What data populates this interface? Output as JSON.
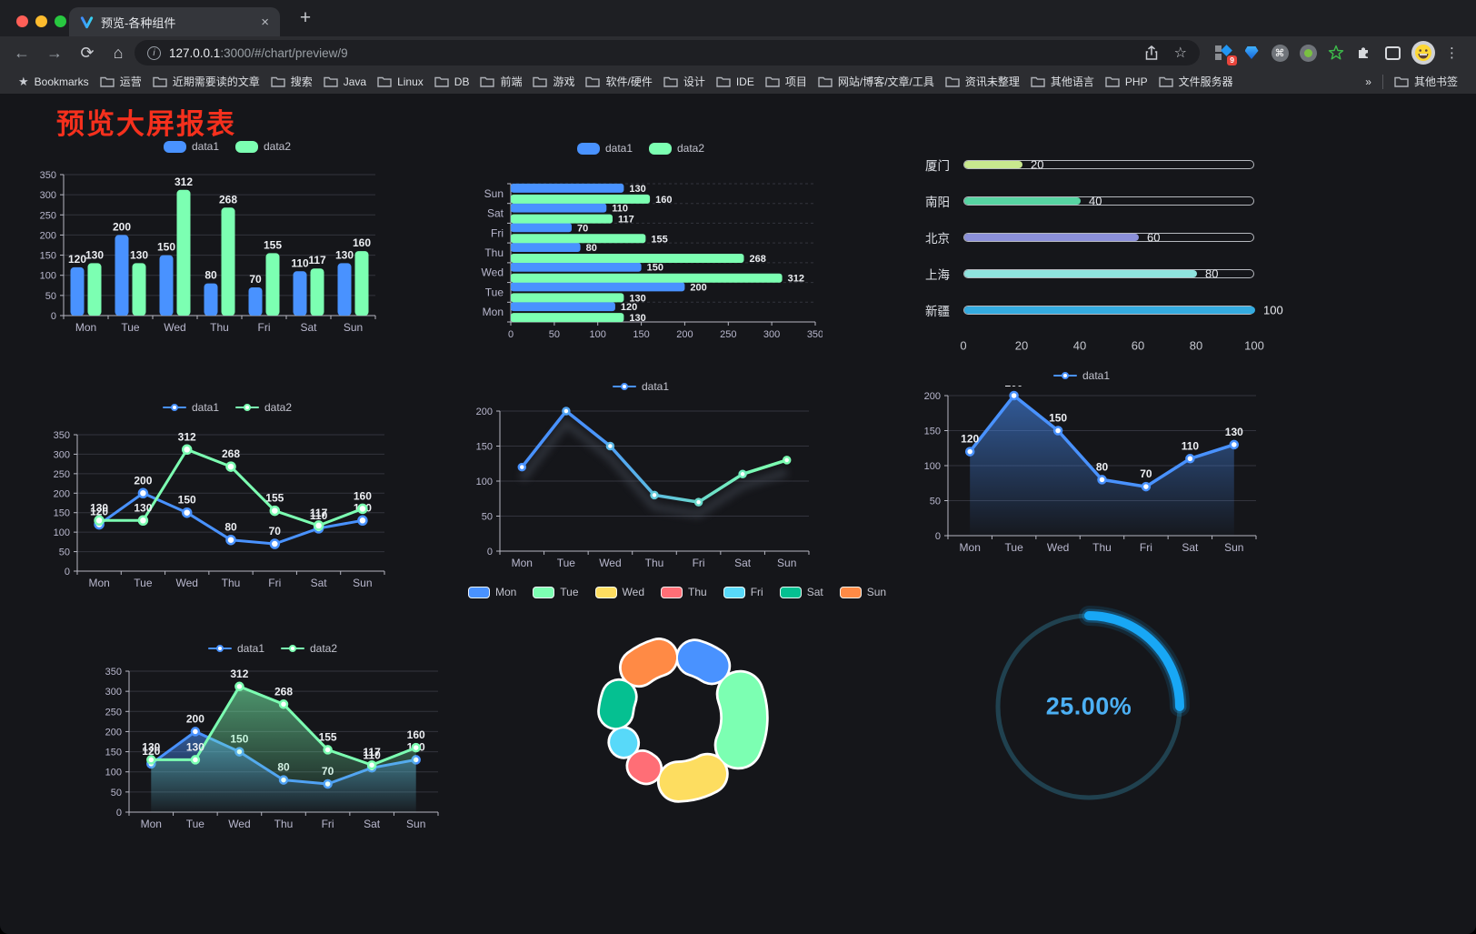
{
  "browser": {
    "traffic_lights": [
      "#ff5f57",
      "#febc2e",
      "#28c840"
    ],
    "tab": {
      "title": "预览-各种组件"
    },
    "icons": {
      "back": "←",
      "forward": "→",
      "reload": "⟳",
      "home": "⌂",
      "info": "i",
      "star": "☆",
      "menu": "⋮",
      "bookmark_star": "★",
      "close": "×",
      "new_tab": "+",
      "overflow": "»",
      "command": "⌘"
    },
    "url": {
      "host": "127.0.0.1",
      "rest": ":3000/#/chart/preview/9"
    },
    "extensions": {
      "badge": "9"
    },
    "bookmarks_bar": {
      "label": "Bookmarks",
      "folders": [
        "运营",
        "近期需要读的文章",
        "搜索",
        "Java",
        "Linux",
        "DB",
        "前端",
        "游戏",
        "软件/硬件",
        "设计",
        "IDE",
        "项目",
        "网站/博客/文章/工具",
        "资讯未整理",
        "其他语言",
        "PHP",
        "文件服务器"
      ],
      "other": "其他书签"
    }
  },
  "page": {
    "title": "预览大屏报表",
    "title_color": "#f5301d"
  },
  "chart_data": [
    {
      "name": "grouped-bar",
      "type": "bar",
      "categories": [
        "Mon",
        "Tue",
        "Wed",
        "Thu",
        "Fri",
        "Sat",
        "Sun"
      ],
      "series": [
        {
          "name": "data1",
          "color": "#4992ff",
          "values": [
            120,
            200,
            150,
            80,
            70,
            110,
            130
          ]
        },
        {
          "name": "data2",
          "color": "#7cffb2",
          "values": [
            130,
            130,
            312,
            268,
            155,
            117,
            160
          ]
        }
      ],
      "ylim": [
        0,
        350
      ],
      "ystep": 50,
      "legend_position": "top",
      "grid": true
    },
    {
      "name": "horizontal-bar",
      "type": "bar",
      "orientation": "horizontal",
      "categories": [
        "Mon",
        "Tue",
        "Wed",
        "Thu",
        "Fri",
        "Sat",
        "Sun"
      ],
      "category_display_order_top_to_bottom": [
        "Sun",
        "Sat",
        "Fri",
        "Thu",
        "Wed",
        "Tue",
        "Mon"
      ],
      "series": [
        {
          "name": "data1",
          "color": "#4992ff",
          "values": [
            120,
            200,
            150,
            80,
            70,
            110,
            130
          ]
        },
        {
          "name": "data2",
          "color": "#7cffb2",
          "values": [
            130,
            130,
            312,
            268,
            155,
            117,
            160
          ]
        }
      ],
      "xlim": [
        0,
        350
      ],
      "xstep": 50,
      "legend_position": "top",
      "grid": true
    },
    {
      "name": "progress-bars",
      "type": "bar",
      "orientation": "horizontal",
      "items": [
        {
          "label": "厦门",
          "value": 20,
          "color": "#c8e88e"
        },
        {
          "label": "南阳",
          "value": 40,
          "color": "#57d4a2"
        },
        {
          "label": "北京",
          "value": 60,
          "color": "#8b90d9"
        },
        {
          "label": "上海",
          "value": 80,
          "color": "#8fe3de"
        },
        {
          "label": "新疆",
          "value": 100,
          "color": "#34abe0"
        }
      ],
      "xlim": [
        0,
        100
      ],
      "xticks": [
        0,
        20,
        40,
        60,
        80,
        100
      ]
    },
    {
      "name": "two-series-line",
      "type": "line",
      "categories": [
        "Mon",
        "Tue",
        "Wed",
        "Thu",
        "Fri",
        "Sat",
        "Sun"
      ],
      "series": [
        {
          "name": "data1",
          "color": "#4992ff",
          "values": [
            120,
            200,
            150,
            80,
            70,
            110,
            130
          ]
        },
        {
          "name": "data2",
          "color": "#7cffb2",
          "values": [
            130,
            130,
            312,
            268,
            155,
            117,
            160
          ]
        }
      ],
      "ylim": [
        0,
        350
      ],
      "ystep": 50,
      "legend_position": "top",
      "labels": true
    },
    {
      "name": "gradient-line",
      "type": "line",
      "categories": [
        "Mon",
        "Tue",
        "Wed",
        "Thu",
        "Fri",
        "Sat",
        "Sun"
      ],
      "series": [
        {
          "name": "data1",
          "color_gradient": [
            "#4992ff",
            "#7cffb2"
          ],
          "values": [
            120,
            200,
            150,
            80,
            70,
            110,
            130
          ]
        }
      ],
      "ylim": [
        0,
        200
      ],
      "ystep": 50,
      "legend_position": "top",
      "labels": false
    },
    {
      "name": "area-line",
      "type": "area",
      "categories": [
        "Mon",
        "Tue",
        "Wed",
        "Thu",
        "Fri",
        "Sat",
        "Sun"
      ],
      "series": [
        {
          "name": "data1",
          "color": "#4992ff",
          "values": [
            120,
            200,
            150,
            80,
            70,
            110,
            130
          ]
        }
      ],
      "ylim": [
        0,
        200
      ],
      "ystep": 50,
      "legend_position": "top",
      "labels": true
    },
    {
      "name": "two-series-area",
      "type": "area",
      "categories": [
        "Mon",
        "Tue",
        "Wed",
        "Thu",
        "Fri",
        "Sat",
        "Sun"
      ],
      "series": [
        {
          "name": "data1",
          "color": "#4992ff",
          "values": [
            120,
            200,
            150,
            80,
            70,
            110,
            130
          ]
        },
        {
          "name": "data2",
          "color": "#7cffb2",
          "values": [
            130,
            130,
            312,
            268,
            155,
            117,
            160
          ]
        }
      ],
      "ylim": [
        0,
        350
      ],
      "ystep": 50,
      "legend_position": "top",
      "labels": true
    },
    {
      "name": "donut",
      "type": "pie",
      "categories": [
        "Mon",
        "Tue",
        "Wed",
        "Thu",
        "Fri",
        "Sat",
        "Sun"
      ],
      "values": [
        120,
        200,
        150,
        80,
        70,
        110,
        130
      ],
      "colors": [
        "#4992ff",
        "#7cffb2",
        "#fddd60",
        "#ff6e76",
        "#58d9f9",
        "#05c091",
        "#ff8a45"
      ],
      "legend_position": "top",
      "rose": true,
      "border_color": "#ffffff"
    },
    {
      "name": "gauge",
      "type": "gauge",
      "percent": 25,
      "label": "25.00%",
      "color": "#18a7f5",
      "track_color": "#20414f",
      "text_color": "#4cb0f4"
    }
  ]
}
